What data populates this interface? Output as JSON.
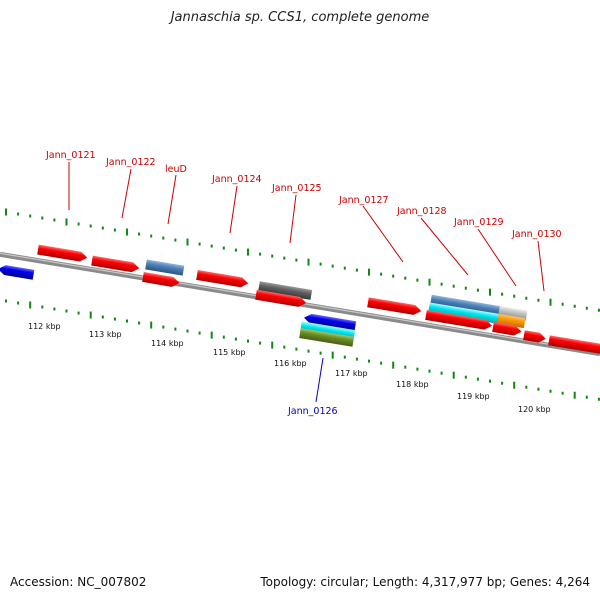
{
  "title": "Jannaschia sp. CCS1, complete genome",
  "footer": {
    "accession": "Accession: NC_007802",
    "topology": "Topology: circular; Length: 4,317,977 bp; Genes: 4,264"
  },
  "colors": {
    "forward_label": "#cc0000",
    "reverse_label": "#0000cc",
    "tick": "#118811",
    "backbone": "#808080",
    "red": "#ff0000",
    "blue": "#0000ee",
    "steelblue": "#4a7fb5",
    "gray": "#606060",
    "cyan": "#00e5ee",
    "olive": "#6b8e23",
    "silver": "#c0c0c0",
    "orange": "#ff9900"
  },
  "scale": {
    "labels": [
      "112 kbp",
      "113 kbp",
      "114 kbp",
      "115 kbp",
      "116 kbp",
      "117 kbp",
      "118 kbp",
      "119 kbp",
      "120 kbp"
    ]
  },
  "gene_labels_forward": [
    "Jann_0121",
    "Jann_0122",
    "leuD",
    "Jann_0124",
    "Jann_0125",
    "Jann_0127",
    "Jann_0128",
    "Jann_0129",
    "Jann_0130"
  ],
  "gene_labels_reverse": [
    "Jann_0126"
  ]
}
